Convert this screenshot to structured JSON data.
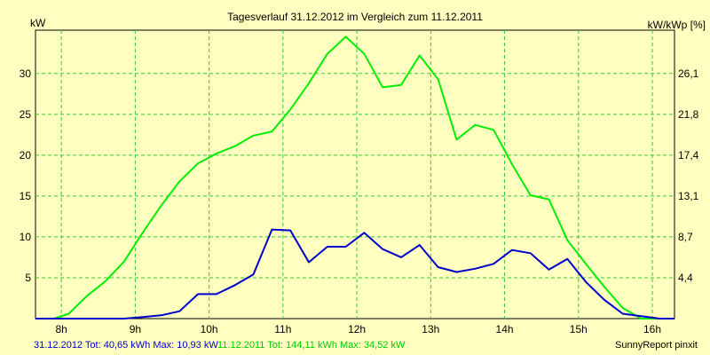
{
  "chart_data": {
    "type": "line",
    "title": "Tagesverlauf 31.12.2012 im Vergleich zum 11.12.2011",
    "y_left_label": "kW",
    "y_right_label": "kW/kWp [%]",
    "x_ticks": [
      {
        "value": 8,
        "label": "8h"
      },
      {
        "value": 9,
        "label": "9h"
      },
      {
        "value": 10,
        "label": "10h"
      },
      {
        "value": 11,
        "label": "11h"
      },
      {
        "value": 12,
        "label": "12h"
      },
      {
        "value": 13,
        "label": "13h"
      },
      {
        "value": 14,
        "label": "14h"
      },
      {
        "value": 15,
        "label": "15h"
      },
      {
        "value": 16,
        "label": "16h"
      }
    ],
    "y_left_ticks": [
      5,
      10,
      15,
      20,
      25,
      30
    ],
    "y_right_ticks": [
      {
        "value": 5,
        "label": "4,4"
      },
      {
        "value": 10,
        "label": "8,7"
      },
      {
        "value": 15,
        "label": "13,1"
      },
      {
        "value": 20,
        "label": "17,4"
      },
      {
        "value": 25,
        "label": "21,8"
      },
      {
        "value": 30,
        "label": "26,1"
      }
    ],
    "xlim": [
      7.65,
      16.3
    ],
    "ylim": [
      0,
      35.3
    ],
    "grid": true,
    "series": [
      {
        "name": "11.12.2011",
        "color": "#00ee00",
        "x": [
          7.65,
          7.9,
          8.1,
          8.35,
          8.6,
          8.85,
          9.1,
          9.35,
          9.6,
          9.85,
          10.1,
          10.35,
          10.6,
          10.85,
          11.1,
          11.35,
          11.6,
          11.85,
          12.1,
          12.35,
          12.6,
          12.85,
          13.1,
          13.35,
          13.6,
          13.85,
          14.1,
          14.35,
          14.6,
          14.85,
          15.1,
          15.35,
          15.6,
          15.85,
          16.1,
          16.3
        ],
        "y": [
          0,
          0,
          0.6,
          2.8,
          4.6,
          7.0,
          10.5,
          13.8,
          16.8,
          19.0,
          20.2,
          21.1,
          22.4,
          22.9,
          25.6,
          28.8,
          32.4,
          34.5,
          32.4,
          28.3,
          28.6,
          32.2,
          29.3,
          21.9,
          23.7,
          23.1,
          18.9,
          15.1,
          14.6,
          9.6,
          6.7,
          3.9,
          1.3,
          0,
          0,
          0
        ]
      },
      {
        "name": "31.12.2012",
        "color": "#0000cc",
        "x": [
          7.65,
          7.9,
          8.1,
          8.35,
          8.6,
          8.85,
          9.1,
          9.35,
          9.6,
          9.85,
          10.1,
          10.35,
          10.6,
          10.85,
          11.1,
          11.35,
          11.6,
          11.85,
          12.1,
          12.35,
          12.6,
          12.85,
          13.1,
          13.35,
          13.6,
          13.85,
          14.1,
          14.35,
          14.6,
          14.85,
          15.1,
          15.35,
          15.6,
          15.85,
          16.1,
          16.3
        ],
        "y": [
          0,
          0,
          0,
          0,
          0,
          0,
          0.2,
          0.4,
          0.9,
          3.0,
          3.0,
          4.1,
          5.4,
          10.9,
          10.8,
          6.9,
          8.8,
          8.8,
          10.5,
          8.5,
          7.5,
          9.0,
          6.3,
          5.7,
          6.1,
          6.7,
          8.4,
          8.0,
          6.0,
          7.3,
          4.5,
          2.3,
          0.6,
          0.3,
          0,
          0
        ]
      }
    ]
  },
  "footer": {
    "blue_text": "31.12.2012 Tot: 40,65 kWh Max: 10,93 kW",
    "green_text": "11.12.2011 Tot: 144,11 kWh Max: 34,52 kW",
    "brand": "SunnyReport pinxit"
  }
}
